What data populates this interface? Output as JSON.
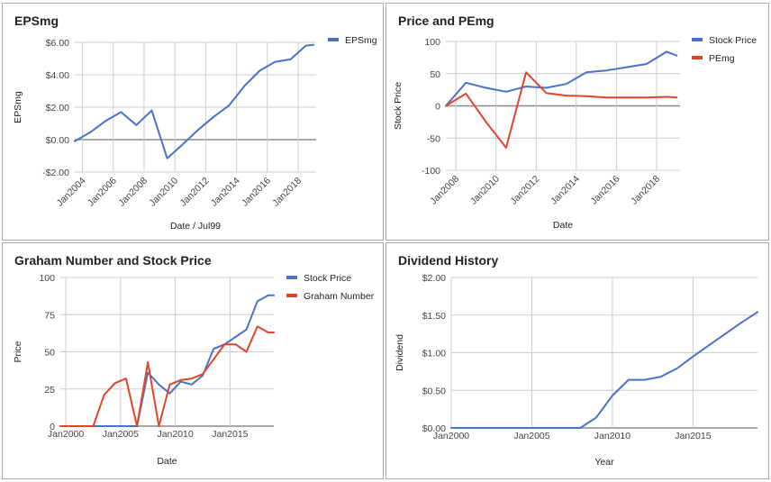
{
  "chart_data": [
    {
      "type": "line",
      "title": "EPSmg",
      "xlabel": "Date / Jul99",
      "ylabel": "EPSmg",
      "ylim": [
        -2,
        6
      ],
      "yticks": [
        -2,
        0,
        2,
        4,
        6
      ],
      "ytick_labels": [
        "-$2.00",
        "$0.00",
        "$2.00",
        "$4.00",
        "$6.00"
      ],
      "xlim": [
        "2003-07",
        "2019-03"
      ],
      "xticks": [
        "2004-01",
        "2006-01",
        "2008-01",
        "2010-01",
        "2012-01",
        "2014-01",
        "2016-01",
        "2018-01"
      ],
      "xtick_labels": [
        "Jan2004",
        "Jan2006",
        "Jan2008",
        "Jan2010",
        "Jan2012",
        "Jan2014",
        "Jan2016",
        "Jan2018"
      ],
      "xtick_rotated": true,
      "legend": "right",
      "grid": true,
      "series": [
        {
          "name": "EPSmg",
          "color": "#4a72c8",
          "x": [
            "2003-07",
            "2004-07",
            "2005-07",
            "2006-07",
            "2007-07",
            "2008-07",
            "2009-07",
            "2010-07",
            "2011-07",
            "2012-07",
            "2013-07",
            "2014-07",
            "2015-07",
            "2016-07",
            "2017-07",
            "2018-07",
            "2019-01"
          ],
          "values": [
            -0.1,
            0.45,
            1.15,
            1.7,
            0.9,
            1.8,
            -1.15,
            -0.3,
            0.6,
            1.4,
            2.1,
            3.3,
            4.25,
            4.8,
            4.95,
            5.8,
            5.85
          ]
        }
      ]
    },
    {
      "type": "line",
      "title": "Price and PEmg",
      "xlabel": "Date",
      "ylabel": "Stock Price",
      "ylim": [
        -100,
        100
      ],
      "yticks": [
        -100,
        -50,
        0,
        50,
        100
      ],
      "ytick_labels": [
        "-100",
        "-50",
        "0",
        "50",
        "100"
      ],
      "xlim": [
        "2007-07",
        "2019-03"
      ],
      "xticks": [
        "2008-01",
        "2010-01",
        "2012-01",
        "2014-01",
        "2016-01",
        "2018-01"
      ],
      "xtick_labels": [
        "Jan2008",
        "Jan2010",
        "Jan2012",
        "Jan2014",
        "Jan2016",
        "Jan2018"
      ],
      "xtick_rotated": true,
      "legend": "right",
      "grid": true,
      "series": [
        {
          "name": "Stock Price",
          "color": "#4a72c8",
          "x": [
            "2007-07",
            "2008-07",
            "2009-07",
            "2010-07",
            "2011-07",
            "2012-07",
            "2013-07",
            "2014-07",
            "2015-07",
            "2016-07",
            "2017-07",
            "2018-07",
            "2019-01"
          ],
          "values": [
            0,
            36,
            28,
            22,
            30,
            28,
            34,
            52,
            55,
            60,
            65,
            84,
            78
          ]
        },
        {
          "name": "PEmg",
          "color": "#e0452c",
          "x": [
            "2007-07",
            "2008-07",
            "2009-07",
            "2010-07",
            "2011-07",
            "2012-07",
            "2013-07",
            "2014-07",
            "2015-07",
            "2016-07",
            "2017-07",
            "2018-07",
            "2019-01"
          ],
          "values": [
            0,
            19,
            -25,
            -65,
            52,
            20,
            16,
            15,
            13,
            13,
            13,
            14,
            13
          ]
        }
      ]
    },
    {
      "type": "line",
      "title": "Graham Number and Stock Price",
      "xlabel": "Date",
      "ylabel": "Price",
      "ylim": [
        0,
        100
      ],
      "yticks": [
        0,
        25,
        50,
        75,
        100
      ],
      "ytick_labels": [
        "0",
        "25",
        "50",
        "75",
        "100"
      ],
      "xlim": [
        "1999-07",
        "2019-01"
      ],
      "xticks": [
        "2000-01",
        "2005-01",
        "2010-01",
        "2015-01"
      ],
      "xtick_labels": [
        "Jan2000",
        "Jan2005",
        "Jan2010",
        "Jan2015"
      ],
      "xtick_rotated": false,
      "legend": "right",
      "grid": true,
      "series": [
        {
          "name": "Stock Price",
          "color": "#4a72c8",
          "x": [
            "1999-07",
            "2000-07",
            "2001-07",
            "2002-07",
            "2003-07",
            "2004-07",
            "2005-07",
            "2006-07",
            "2007-07",
            "2008-07",
            "2009-07",
            "2010-07",
            "2011-07",
            "2012-07",
            "2013-07",
            "2014-07",
            "2015-07",
            "2016-07",
            "2017-07",
            "2018-07",
            "2019-01"
          ],
          "values": [
            0,
            0,
            0,
            0,
            0,
            0,
            0,
            0,
            36,
            28,
            22,
            30,
            28,
            34,
            52,
            55,
            60,
            65,
            84,
            88,
            88
          ]
        },
        {
          "name": "Graham Number",
          "color": "#e0452c",
          "x": [
            "1999-07",
            "2000-07",
            "2001-07",
            "2002-07",
            "2003-07",
            "2004-07",
            "2005-07",
            "2006-07",
            "2007-07",
            "2008-07",
            "2009-07",
            "2010-07",
            "2011-07",
            "2012-07",
            "2013-07",
            "2014-07",
            "2015-07",
            "2016-07",
            "2017-07",
            "2018-07",
            "2019-01"
          ],
          "values": [
            0,
            0,
            0,
            0,
            21,
            29,
            32,
            0,
            43,
            0,
            28,
            31,
            32,
            35,
            45,
            55,
            55,
            50,
            67,
            63,
            63
          ]
        }
      ]
    },
    {
      "type": "line",
      "title": "Dividend History",
      "xlabel": "Year",
      "ylabel": "Dividend",
      "ylim": [
        0,
        2
      ],
      "yticks": [
        0,
        0.5,
        1,
        1.5,
        2
      ],
      "ytick_labels": [
        "$0.00",
        "$0.50",
        "$1.00",
        "$1.50",
        "$2.00"
      ],
      "xlim": [
        "2000-01",
        "2019-01"
      ],
      "xticks": [
        "2000-01",
        "2005-01",
        "2010-01",
        "2015-01"
      ],
      "xtick_labels": [
        "Jan2000",
        "Jan2005",
        "Jan2010",
        "Jan2015"
      ],
      "xtick_rotated": false,
      "legend": "none",
      "grid": true,
      "series": [
        {
          "color": "#4a72c8",
          "x": [
            "2000-01",
            "2001-01",
            "2002-01",
            "2003-01",
            "2004-01",
            "2005-01",
            "2006-01",
            "2007-01",
            "2008-01",
            "2009-01",
            "2010-01",
            "2011-01",
            "2012-01",
            "2013-01",
            "2014-01",
            "2015-01",
            "2016-01",
            "2017-01",
            "2018-01",
            "2019-01"
          ],
          "values": [
            0,
            0,
            0,
            0,
            0,
            0,
            0,
            0,
            0,
            0.14,
            0.43,
            0.64,
            0.64,
            0.68,
            0.79,
            0.95,
            1.1,
            1.25,
            1.4,
            1.54
          ]
        }
      ]
    }
  ]
}
